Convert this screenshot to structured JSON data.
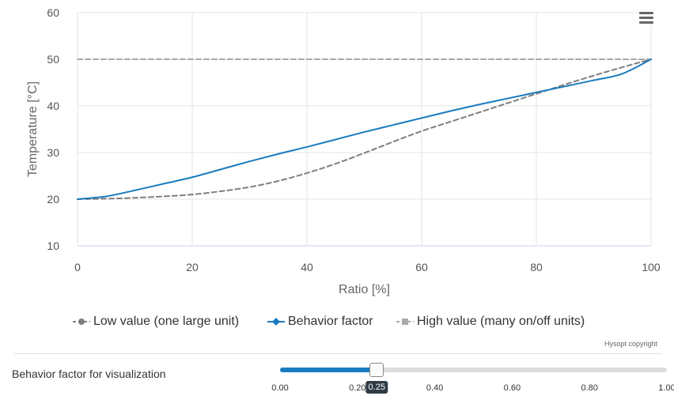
{
  "chart_data": {
    "type": "line",
    "title": "",
    "xlabel": "Ratio [%]",
    "ylabel": "Temperature [°C]",
    "xlim": [
      0,
      100
    ],
    "ylim": [
      10,
      60
    ],
    "xticks": [
      0,
      20,
      40,
      60,
      80,
      100
    ],
    "yticks": [
      10,
      20,
      30,
      40,
      50,
      60
    ],
    "grid": true,
    "legend_position": "bottom-center",
    "series": [
      {
        "name": "Low value (one large unit)",
        "color": "#7f7f7f",
        "dash": "dashed",
        "marker": "circle",
        "x": [
          0,
          5,
          10,
          15,
          20,
          25,
          30,
          35,
          40,
          45,
          50,
          55,
          60,
          65,
          70,
          75,
          80,
          85,
          90,
          95,
          100
        ],
        "y": [
          20,
          20.1,
          20.3,
          20.6,
          21.0,
          21.7,
          22.6,
          23.9,
          25.6,
          27.6,
          29.9,
          32.3,
          34.6,
          36.6,
          38.6,
          40.6,
          42.6,
          44.6,
          46.5,
          48.3,
          50
        ]
      },
      {
        "name": "Behavior factor",
        "color": "#1a7bbf",
        "dash": "solid",
        "marker": "diamond",
        "x": [
          0,
          5,
          10,
          15,
          20,
          25,
          30,
          35,
          40,
          45,
          50,
          55,
          60,
          65,
          70,
          75,
          80,
          85,
          90,
          95,
          100
        ],
        "y": [
          20,
          20.6,
          21.9,
          23.3,
          24.7,
          26.4,
          28.1,
          29.7,
          31.2,
          32.8,
          34.4,
          35.9,
          37.4,
          38.9,
          40.3,
          41.6,
          42.9,
          44.2,
          45.5,
          46.9,
          50
        ]
      },
      {
        "name": "High value (many on/off units)",
        "color": "#aaaaaa",
        "dash": "dashed",
        "marker": "square",
        "x": [
          0,
          100
        ],
        "y": [
          50,
          50
        ]
      }
    ]
  },
  "credits": "Hysopt copyright",
  "slider": {
    "label": "Behavior factor for visualization",
    "value": 0.25,
    "value_label": "0.25",
    "min": 0,
    "max": 1,
    "ticks": [
      "0.00",
      "0.20",
      "0.40",
      "0.60",
      "0.80",
      "1.00"
    ]
  }
}
